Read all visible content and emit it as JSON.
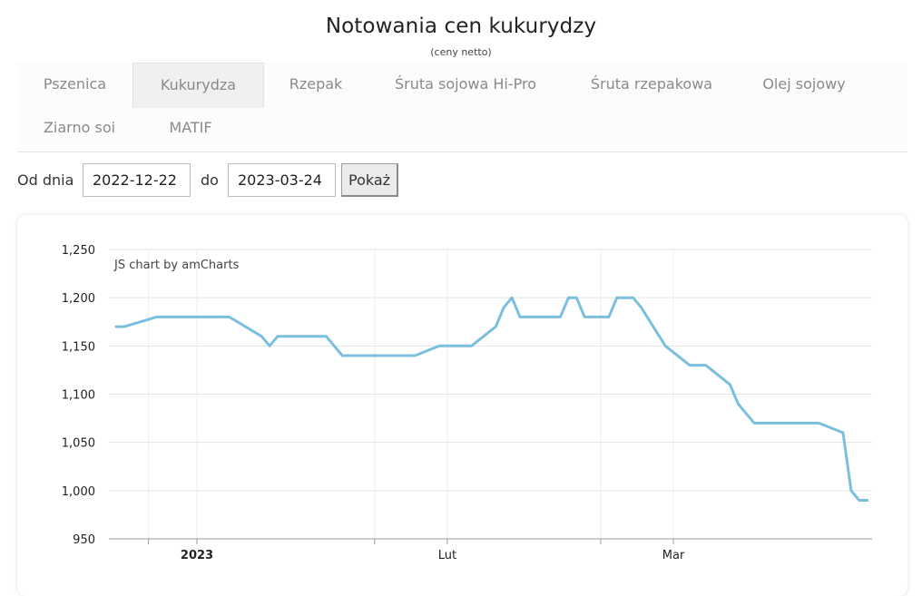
{
  "page": {
    "title": "Notowania cen kukurydzy",
    "subtitle": "(ceny netto)"
  },
  "tabs": [
    {
      "label": "Pszenica",
      "active": false
    },
    {
      "label": "Kukurydza",
      "active": true
    },
    {
      "label": "Rzepak",
      "active": false
    },
    {
      "label": "Śruta sojowa Hi-Pro",
      "active": false
    },
    {
      "label": "Śruta rzepakowa",
      "active": false
    },
    {
      "label": "Olej sojowy",
      "active": false
    },
    {
      "label": "Ziarno soi",
      "active": false
    },
    {
      "label": "MATIF",
      "active": false
    }
  ],
  "filter": {
    "from_label": "Od dnia",
    "from_value": "2022-12-22",
    "to_label": "do",
    "to_value": "2023-03-24",
    "submit_label": "Pokaż"
  },
  "chart_data": {
    "type": "line",
    "credit": "JS chart by amCharts",
    "line_color": "#7bbfdf",
    "y_ticks": [
      "1,250",
      "1,200",
      "1,150",
      "1,100",
      "1,050",
      "1,000",
      "950"
    ],
    "ylim": [
      950,
      1250
    ],
    "xlim": [
      "2022-12-22",
      "2023-03-24"
    ],
    "x_ticks": [
      {
        "label": "",
        "date": "2022-12-26"
      },
      {
        "label": "2023",
        "date": "2023-01-01",
        "bold": true
      },
      {
        "label": "",
        "date": "2023-01-23"
      },
      {
        "label": "Lut",
        "date": "2023-02-01"
      },
      {
        "label": "",
        "date": "2023-02-20"
      },
      {
        "label": "Mar",
        "date": "2023-03-01"
      }
    ],
    "grid": true,
    "series": [
      {
        "points": [
          [
            "2022-12-22",
            1170
          ],
          [
            "2022-12-23",
            1170
          ],
          [
            "2022-12-27",
            1180
          ],
          [
            "2023-01-05",
            1180
          ],
          [
            "2023-01-09",
            1160
          ],
          [
            "2023-01-10",
            1150
          ],
          [
            "2023-01-11",
            1160
          ],
          [
            "2023-01-17",
            1160
          ],
          [
            "2023-01-19",
            1140
          ],
          [
            "2023-01-28",
            1140
          ],
          [
            "2023-01-31",
            1150
          ],
          [
            "2023-02-04",
            1150
          ],
          [
            "2023-02-07",
            1170
          ],
          [
            "2023-02-08",
            1190
          ],
          [
            "2023-02-09",
            1200
          ],
          [
            "2023-02-10",
            1180
          ],
          [
            "2023-02-15",
            1180
          ],
          [
            "2023-02-16",
            1200
          ],
          [
            "2023-02-17",
            1200
          ],
          [
            "2023-02-18",
            1180
          ],
          [
            "2023-02-21",
            1180
          ],
          [
            "2023-02-22",
            1200
          ],
          [
            "2023-02-24",
            1200
          ],
          [
            "2023-02-25",
            1190
          ],
          [
            "2023-02-28",
            1150
          ],
          [
            "2023-03-03",
            1130
          ],
          [
            "2023-03-05",
            1130
          ],
          [
            "2023-03-08",
            1110
          ],
          [
            "2023-03-09",
            1090
          ],
          [
            "2023-03-10",
            1080
          ],
          [
            "2023-03-11",
            1070
          ],
          [
            "2023-03-19",
            1070
          ],
          [
            "2023-03-22",
            1060
          ],
          [
            "2023-03-23",
            1000
          ],
          [
            "2023-03-24",
            990
          ],
          [
            "2023-03-25",
            990
          ]
        ]
      }
    ]
  }
}
